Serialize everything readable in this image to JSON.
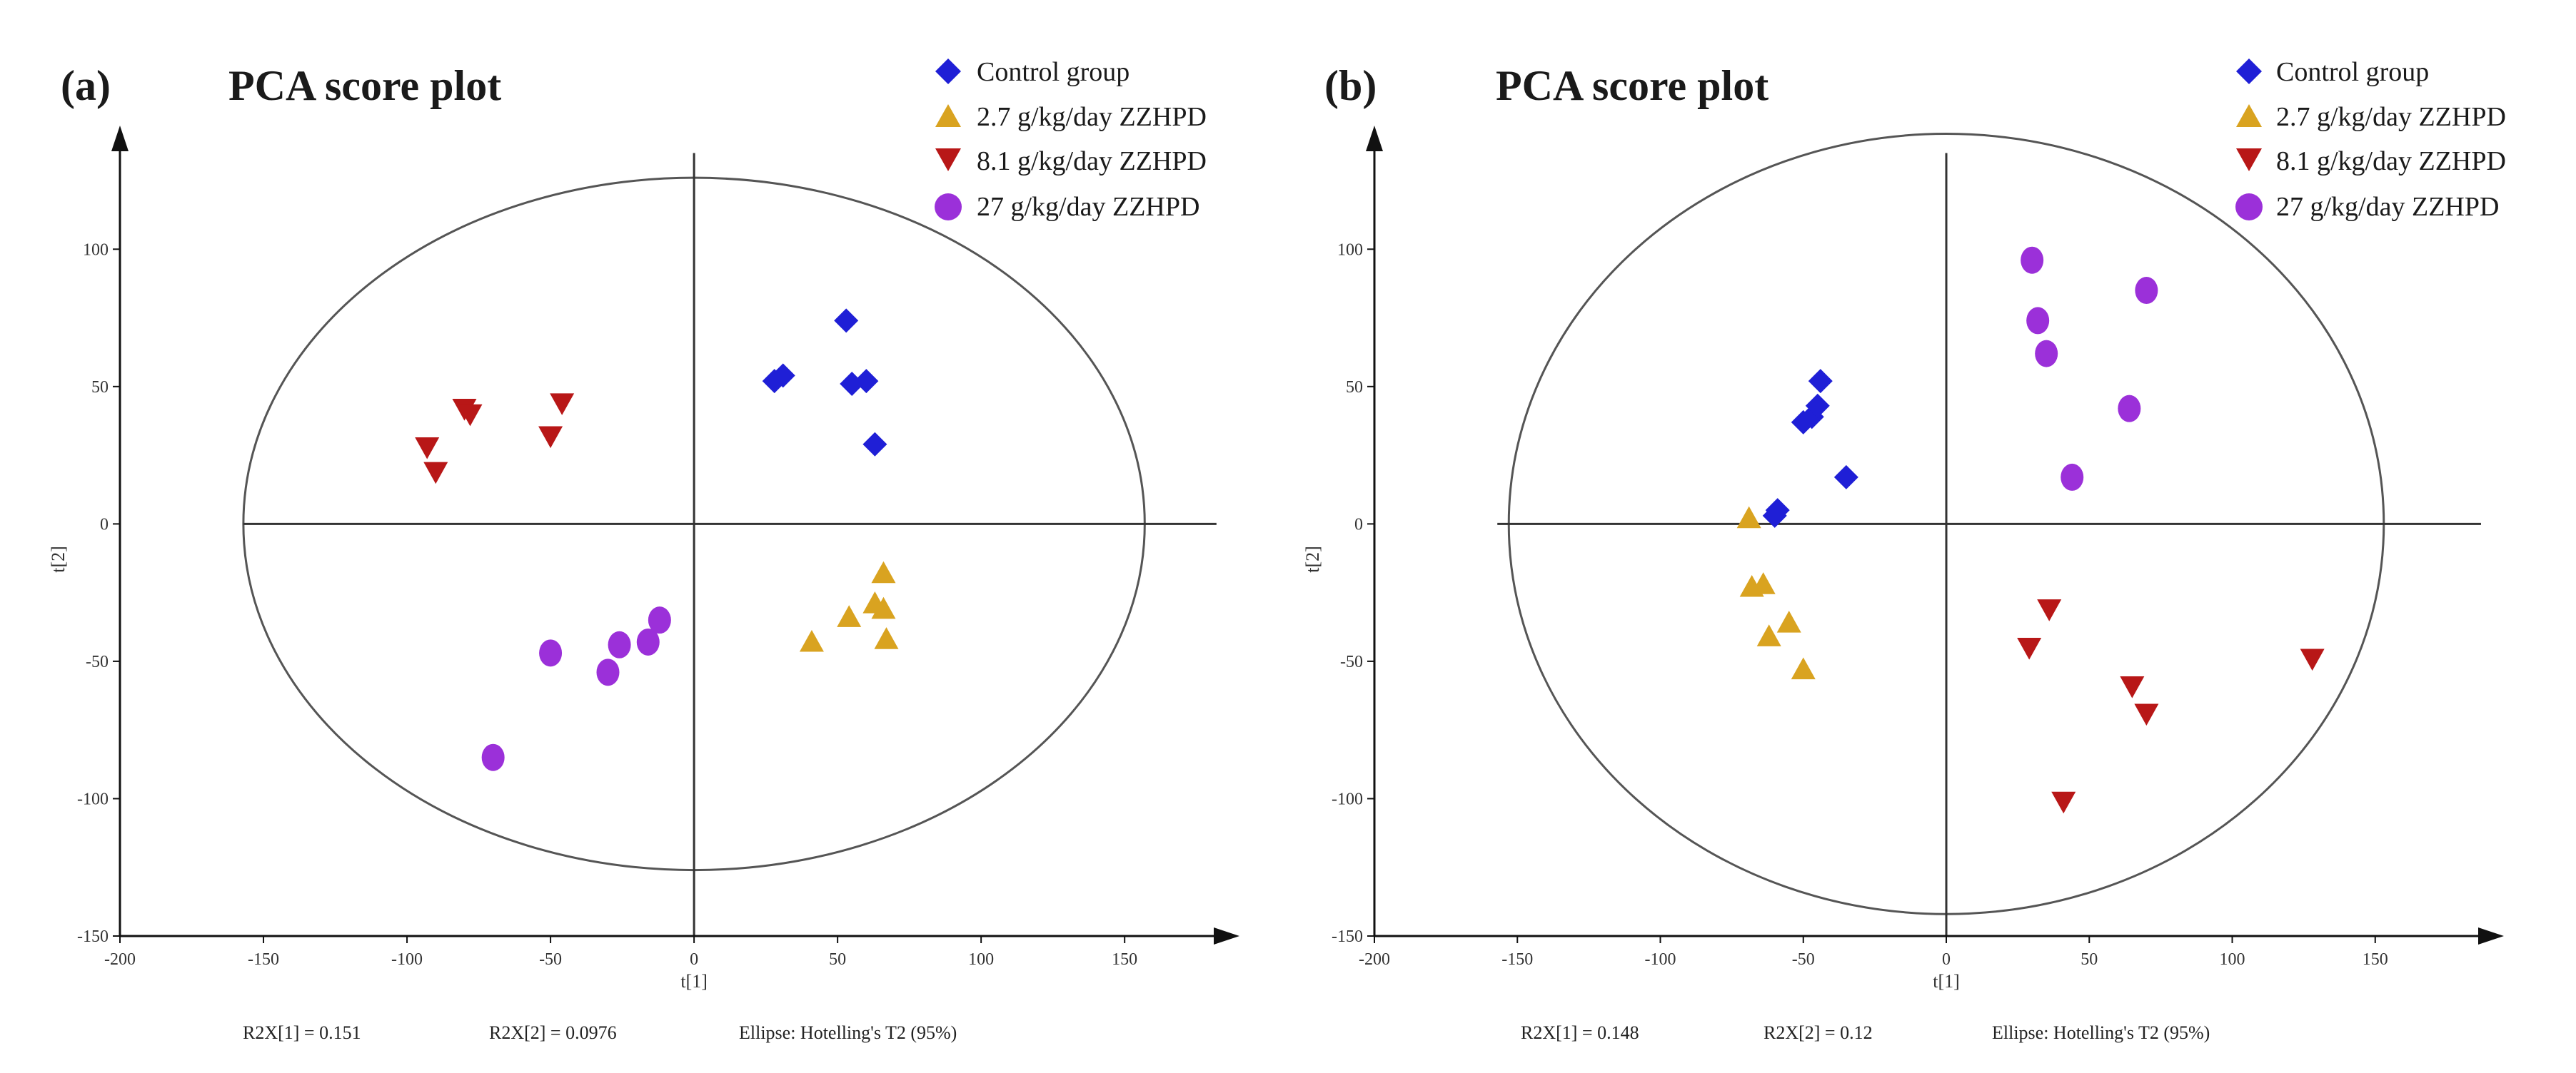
{
  "chart_data": [
    {
      "type": "scatter",
      "panel_label": "(a)",
      "title": "PCA score plot",
      "xlabel": "t[1]",
      "ylabel": "t[2]",
      "xlim": [
        -200,
        190
      ],
      "ylim": [
        -150,
        145
      ],
      "xticks": [
        -200,
        -150,
        -100,
        -50,
        0,
        50,
        100,
        150
      ],
      "yticks": [
        -150,
        -100,
        -50,
        0,
        50,
        100
      ],
      "ellipse": {
        "cx": 0,
        "cy": 0,
        "rx": 157,
        "ry": 126
      },
      "legend_position": "top-right",
      "series": [
        {
          "name": "Control group",
          "marker": "diamond",
          "color": "#1f1fd6",
          "points": [
            [
              28,
              52
            ],
            [
              31,
              54
            ],
            [
              53,
              74
            ],
            [
              55,
              51
            ],
            [
              60,
              52
            ],
            [
              63,
              29
            ]
          ]
        },
        {
          "name": "2.7 g/kg/day  ZZHPD",
          "marker": "triangle-up",
          "color": "#d9a320",
          "points": [
            [
              41,
              -43
            ],
            [
              54,
              -34
            ],
            [
              63,
              -29
            ],
            [
              66,
              -18
            ],
            [
              66,
              -31
            ],
            [
              67,
              -42
            ]
          ]
        },
        {
          "name": "8.1 g/kg/day  ZZHPD",
          "marker": "triangle-down",
          "color": "#b81717",
          "points": [
            [
              -93,
              28
            ],
            [
              -90,
              19
            ],
            [
              -80,
              42
            ],
            [
              -78,
              40
            ],
            [
              -50,
              32
            ],
            [
              -46,
              44
            ]
          ]
        },
        {
          "name": "27 g/kg/day   ZZHPD",
          "marker": "circle",
          "color": "#9b30d9",
          "points": [
            [
              -70,
              -85
            ],
            [
              -50,
              -47
            ],
            [
              -30,
              -54
            ],
            [
              -26,
              -44
            ],
            [
              -16,
              -43
            ],
            [
              -12,
              -35
            ]
          ]
        }
      ],
      "stats": [
        "R2X[1] = 0.151",
        "R2X[2] = 0.0976",
        "Ellipse: Hotelling's T2 (95%)"
      ]
    },
    {
      "type": "scatter",
      "panel_label": "(b)",
      "title": "PCA score plot",
      "xlabel": "t[1]",
      "ylabel": "t[2]",
      "xlim": [
        -200,
        195
      ],
      "ylim": [
        -150,
        145
      ],
      "xticks": [
        -200,
        -150,
        -100,
        -50,
        0,
        50,
        100,
        150
      ],
      "yticks": [
        -150,
        -100,
        -50,
        0,
        50,
        100
      ],
      "ellipse": {
        "cx": 0,
        "cy": 0,
        "rx": 153,
        "ry": 142
      },
      "legend_position": "top-right",
      "series": [
        {
          "name": "Control group",
          "marker": "diamond",
          "color": "#1f1fd6",
          "points": [
            [
              -60,
              3
            ],
            [
              -59,
              5
            ],
            [
              -50,
              37
            ],
            [
              -47,
              39
            ],
            [
              -45,
              43
            ],
            [
              -44,
              52
            ],
            [
              -35,
              17
            ]
          ]
        },
        {
          "name": "2.7 g/kg/day  ZZHPD",
          "marker": "triangle-up",
          "color": "#d9a320",
          "points": [
            [
              -69,
              2
            ],
            [
              -68,
              -23
            ],
            [
              -64,
              -22
            ],
            [
              -62,
              -41
            ],
            [
              -55,
              -36
            ],
            [
              -50,
              -53
            ]
          ]
        },
        {
          "name": "8.1 g/kg/day  ZZHPD",
          "marker": "triangle-down",
          "color": "#b81717",
          "points": [
            [
              29,
              -45
            ],
            [
              36,
              -31
            ],
            [
              41,
              -101
            ],
            [
              65,
              -59
            ],
            [
              70,
              -69
            ],
            [
              128,
              -49
            ]
          ]
        },
        {
          "name": "27 g/kg/day   ZZHPD",
          "marker": "circle",
          "color": "#9b30d9",
          "points": [
            [
              30,
              96
            ],
            [
              32,
              74
            ],
            [
              35,
              62
            ],
            [
              44,
              17
            ],
            [
              64,
              42
            ],
            [
              70,
              85
            ]
          ]
        }
      ],
      "stats": [
        "R2X[1] = 0.148",
        "R2X[2] = 0.12",
        "Ellipse: Hotelling's T2 (95%)"
      ]
    }
  ]
}
